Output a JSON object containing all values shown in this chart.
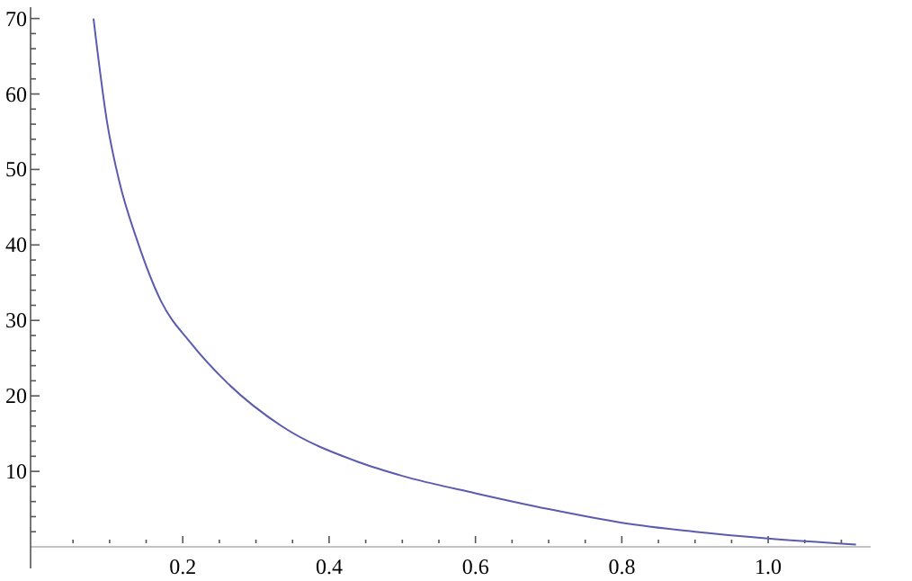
{
  "chart_data": {
    "type": "line",
    "x": [
      0.078,
      0.097,
      0.113,
      0.138,
      0.17,
      0.211,
      0.261,
      0.335,
      0.441,
      0.5,
      0.6,
      0.7,
      0.8,
      0.9,
      1.0,
      1.12
    ],
    "series": [
      {
        "color": "#5b5bb0",
        "values": [
          70,
          56,
          48.5,
          40.5,
          32.6,
          27,
          21.7,
          16,
          11.2,
          9.4,
          7.1,
          5,
          3.2,
          2.0,
          1.1,
          0.3
        ]
      }
    ],
    "xlim": [
      -0.008,
      1.14
    ],
    "ylim": [
      0,
      71.5
    ],
    "xticks": [
      {
        "value": 0.05,
        "label": null
      },
      {
        "value": 0.1,
        "label": null
      },
      {
        "value": 0.15,
        "label": null
      },
      0.2,
      {
        "value": 0.25,
        "label": null
      },
      {
        "value": 0.3,
        "label": null
      },
      {
        "value": 0.35,
        "label": null
      },
      0.4,
      {
        "value": 0.45,
        "label": null
      },
      {
        "value": 0.5,
        "label": null
      },
      {
        "value": 0.55,
        "label": null
      },
      0.6,
      {
        "value": 0.65,
        "label": null
      },
      {
        "value": 0.7,
        "label": null
      },
      {
        "value": 0.75,
        "label": null
      },
      0.8,
      {
        "value": 0.85,
        "label": null
      },
      {
        "value": 0.9,
        "label": null
      },
      {
        "value": 0.95,
        "label": null
      },
      {
        "value": 1.0,
        "label": "1.0"
      },
      {
        "value": 1.05,
        "label": null
      },
      {
        "value": 1.1,
        "label": null
      }
    ],
    "yticks": [
      {
        "value": 2,
        "label": null
      },
      {
        "value": 4,
        "label": null
      },
      {
        "value": 6,
        "label": null
      },
      {
        "value": 8,
        "label": null
      },
      10,
      {
        "value": 12,
        "label": null
      },
      {
        "value": 14,
        "label": null
      },
      {
        "value": 16,
        "label": null
      },
      {
        "value": 18,
        "label": null
      },
      20,
      {
        "value": 22,
        "label": null
      },
      {
        "value": 24,
        "label": null
      },
      {
        "value": 26,
        "label": null
      },
      {
        "value": 28,
        "label": null
      },
      30,
      {
        "value": 32,
        "label": null
      },
      {
        "value": 34,
        "label": null
      },
      {
        "value": 36,
        "label": null
      },
      {
        "value": 38,
        "label": null
      },
      40,
      {
        "value": 42,
        "label": null
      },
      {
        "value": 44,
        "label": null
      },
      {
        "value": 46,
        "label": null
      },
      {
        "value": 48,
        "label": null
      },
      50,
      {
        "value": 52,
        "label": null
      },
      {
        "value": 54,
        "label": null
      },
      {
        "value": 56,
        "label": null
      },
      {
        "value": 58,
        "label": null
      },
      60,
      {
        "value": 62,
        "label": null
      },
      {
        "value": 64,
        "label": null
      },
      {
        "value": 66,
        "label": null
      },
      {
        "value": 68,
        "label": null
      },
      70
    ],
    "grid": false,
    "marker": "none",
    "line_style": "solid"
  }
}
